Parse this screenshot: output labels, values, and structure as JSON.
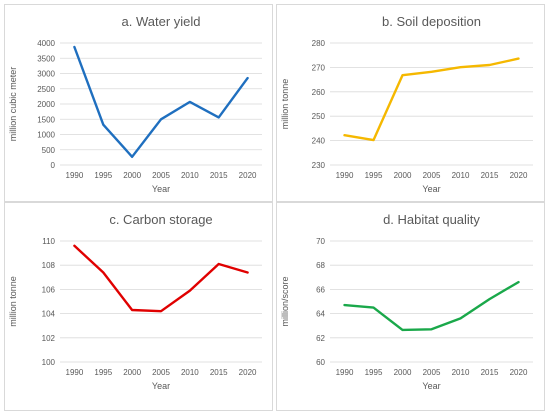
{
  "chart_data": [
    {
      "type": "line",
      "title": "a. Water yield",
      "xlabel": "Year",
      "ylabel": "million cubic meter",
      "x": [
        1990,
        1995,
        2000,
        2005,
        2010,
        2015,
        2020
      ],
      "x_ticks": [
        "1990",
        "1995",
        "2000",
        "2005",
        "2010",
        "2015",
        "2020"
      ],
      "y_ticks": [
        "0",
        "500",
        "1000",
        "1500",
        "2000",
        "2500",
        "3000",
        "3500",
        "4000"
      ],
      "ylim": [
        0,
        4000
      ],
      "series": [
        {
          "values": [
            3870,
            1320,
            270,
            1500,
            2070,
            1560,
            2850
          ]
        }
      ],
      "color": "#1f6fbf",
      "grid": true
    },
    {
      "type": "line",
      "title": "b. Soil deposition",
      "xlabel": "Year",
      "ylabel": "million tonne",
      "x": [
        1990,
        1995,
        2000,
        2005,
        2010,
        2015,
        2020
      ],
      "x_ticks": [
        "1990",
        "1995",
        "2000",
        "2005",
        "2010",
        "2015",
        "2020"
      ],
      "y_ticks": [
        "230",
        "240",
        "250",
        "260",
        "270",
        "280"
      ],
      "ylim": [
        230,
        280
      ],
      "series": [
        {
          "values": [
            242.2,
            240.2,
            266.8,
            268.2,
            270.1,
            271.0,
            273.6
          ]
        }
      ],
      "color": "#f5b800",
      "grid": true
    },
    {
      "type": "line",
      "title": "c. Carbon storage",
      "xlabel": "Year",
      "ylabel": "million tonne",
      "x": [
        1990,
        1995,
        2000,
        2005,
        2010,
        2015,
        2020
      ],
      "x_ticks": [
        "1990",
        "1995",
        "2000",
        "2005",
        "2010",
        "2015",
        "2020"
      ],
      "y_ticks": [
        "100",
        "102",
        "104",
        "106",
        "108",
        "110"
      ],
      "ylim": [
        100,
        110
      ],
      "series": [
        {
          "values": [
            109.6,
            107.4,
            104.3,
            104.2,
            105.9,
            108.1,
            107.4
          ]
        }
      ],
      "color": "#e00000",
      "grid": true
    },
    {
      "type": "line",
      "title": "d. Habitat quality",
      "xlabel": "Year",
      "ylabel": "million/score",
      "x": [
        1990,
        1995,
        2000,
        2005,
        2010,
        2015,
        2020
      ],
      "x_ticks": [
        "1990",
        "1995",
        "2000",
        "2005",
        "2010",
        "2015",
        "2020"
      ],
      "y_ticks": [
        "60",
        "62",
        "64",
        "66",
        "68",
        "70"
      ],
      "ylim": [
        60,
        70
      ],
      "series": [
        {
          "values": [
            64.7,
            64.5,
            62.65,
            62.7,
            63.6,
            65.2,
            66.6
          ]
        }
      ],
      "color": "#1aa84a",
      "grid": true
    }
  ]
}
